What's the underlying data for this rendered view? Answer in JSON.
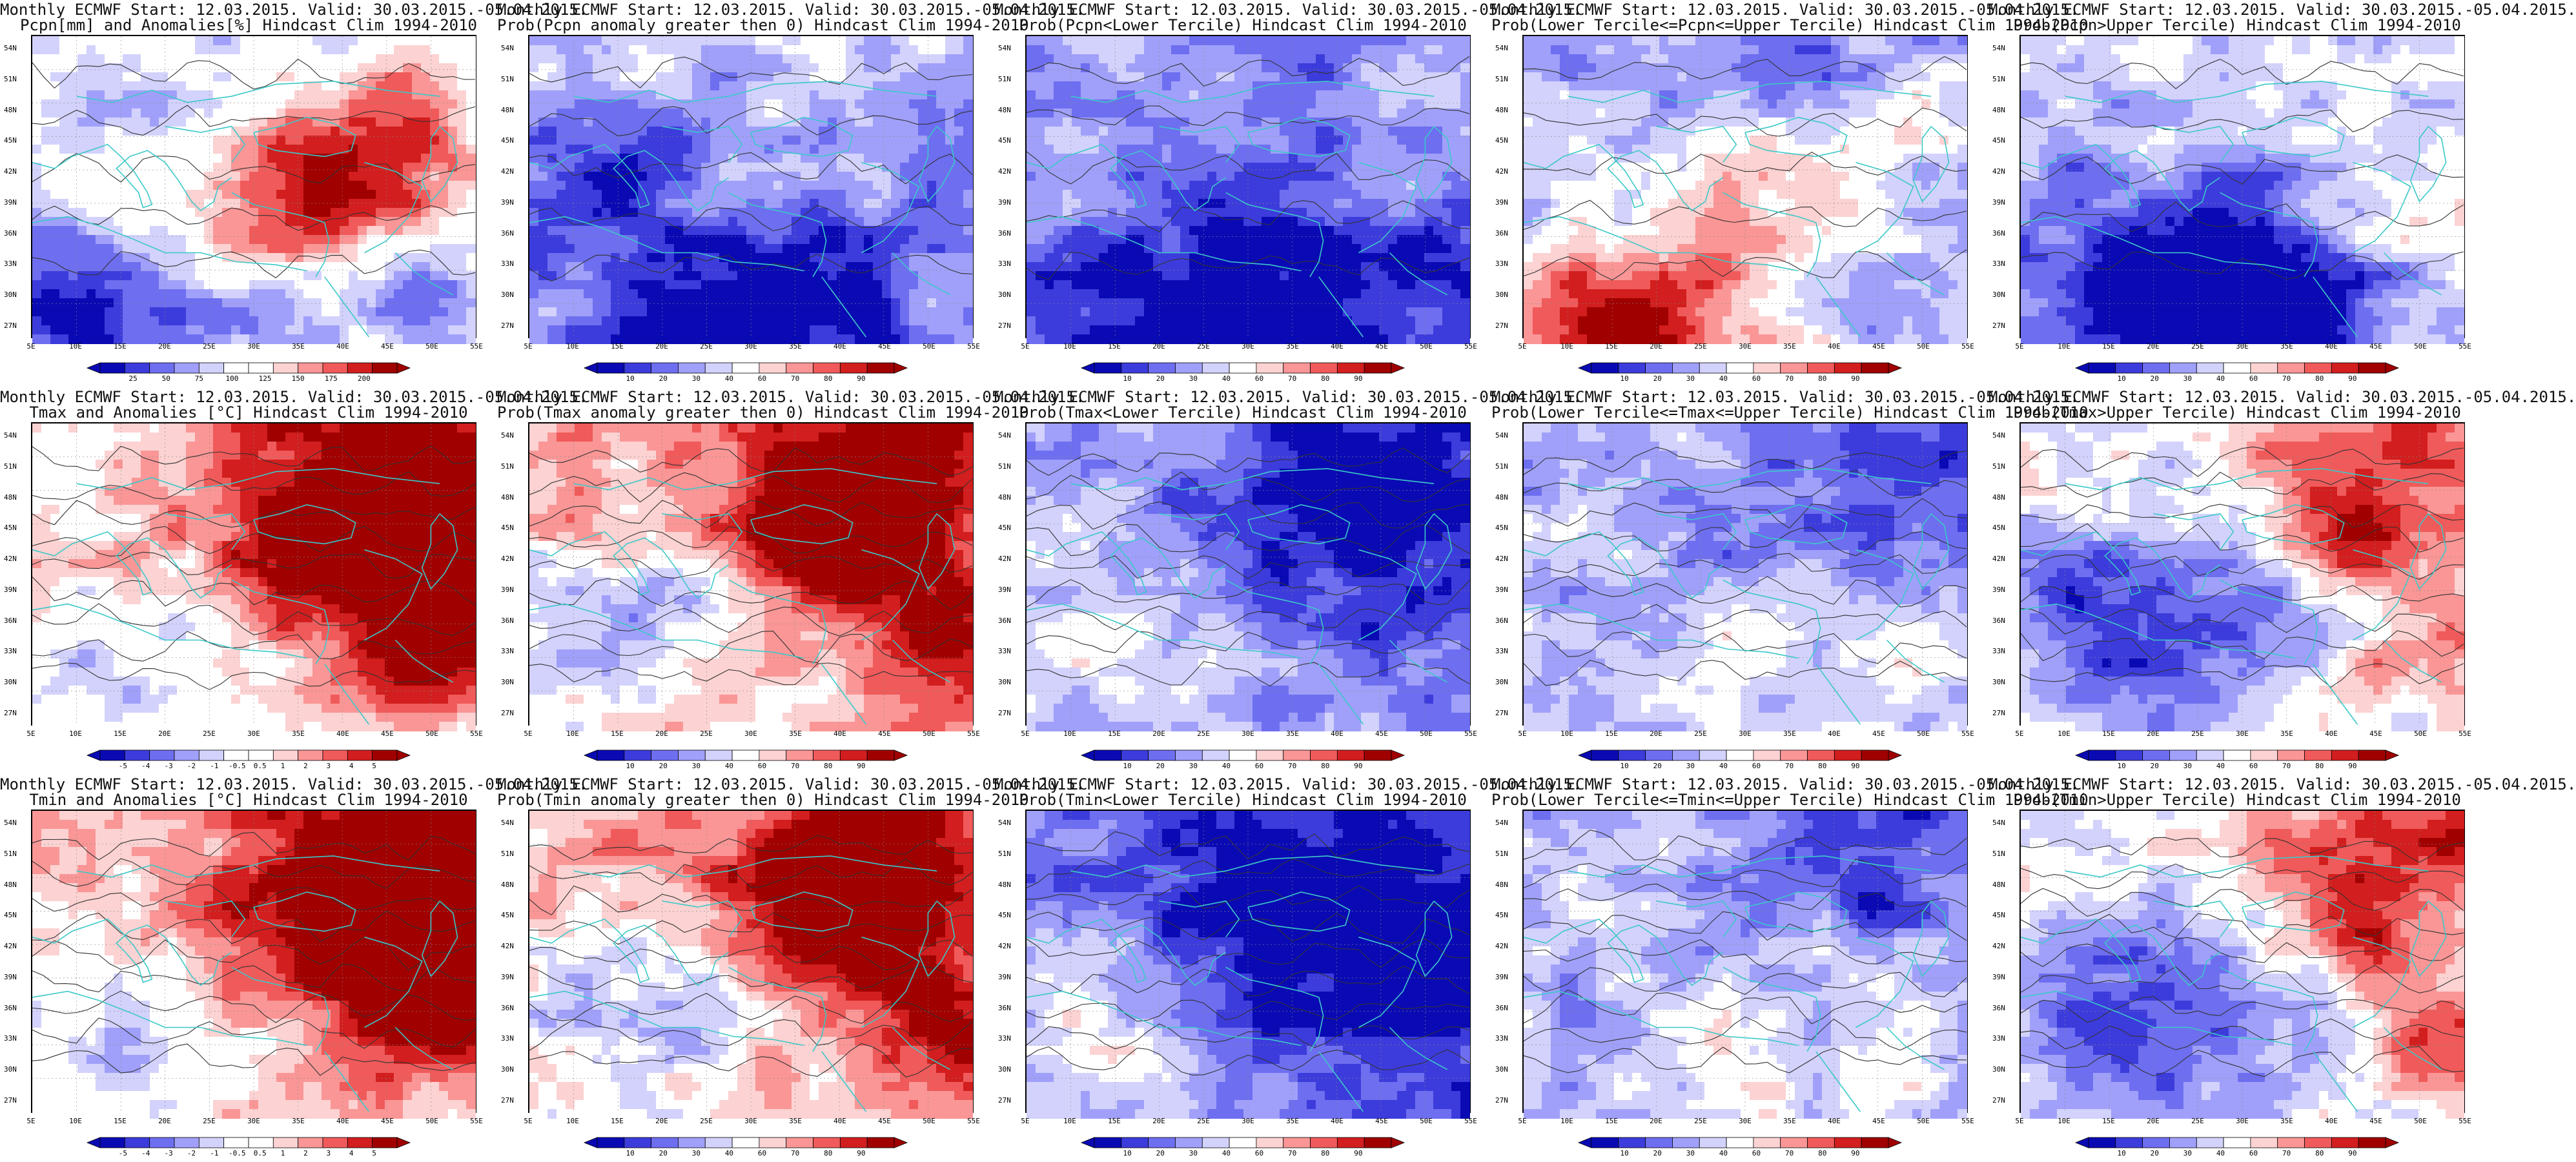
{
  "common": {
    "lat_ticks": [
      "54N",
      "51N",
      "48N",
      "45N",
      "42N",
      "39N",
      "36N",
      "33N",
      "30N",
      "27N"
    ],
    "lon_ticks": [
      "5E",
      "10E",
      "15E",
      "20E",
      "25E",
      "30E",
      "35E",
      "40E",
      "45E",
      "50E",
      "55E"
    ],
    "palettes": {
      "anomaly": [
        "#0a0ab4",
        "#3c3cdc",
        "#6e6ef0",
        "#a0a0fa",
        "#d2d2fc",
        "#ffffff",
        "#ffffff",
        "#fcd2d2",
        "#fa9696",
        "#f05a5a",
        "#d21e1e",
        "#a00000"
      ],
      "probability": [
        "#0a0ab4",
        "#3c3cdc",
        "#6e6ef0",
        "#a0a0fa",
        "#d2d2fc",
        "#ffffff",
        "#fcd2d2",
        "#fa9696",
        "#f05a5a",
        "#d21e1e",
        "#a00000"
      ]
    },
    "coast_color": "#3cc8c8",
    "contour_color": "#333333"
  },
  "panels": [
    {
      "row": 0,
      "col": 0,
      "title1": "Monthly ECMWF Start: 12.03.2015. Valid: 30.03.2015.-05.04.2015.",
      "title2": "Pcpn[mm] and Anomalies[%] Hindcast Clim 1994-2010",
      "palette": "anomaly",
      "cb_labels": [
        "25",
        "50",
        "75",
        "100",
        "125",
        "150",
        "175",
        "200"
      ],
      "pattern": "pcpn_anom"
    },
    {
      "row": 0,
      "col": 1,
      "title1": "Monthly ECMWF Start: 12.03.2015. Valid: 30.03.2015.-05.04.2015.",
      "title2": "Prob(Pcpn anomaly greater then 0) Hindcast Clim 1994-2010",
      "palette": "probability",
      "cb_labels": [
        "10",
        "20",
        "30",
        "40",
        "60",
        "70",
        "80",
        "90"
      ],
      "pattern": "pcpn_prob"
    },
    {
      "row": 0,
      "col": 2,
      "title1": "Monthly ECMWF Start: 12.03.2015. Valid: 30.03.2015.-05.04.2015.",
      "title2": "Prob(Pcpn<Lower Tercile) Hindcast Clim 1994-2010",
      "palette": "probability",
      "cb_labels": [
        "10",
        "20",
        "30",
        "40",
        "60",
        "70",
        "80",
        "90"
      ],
      "pattern": "pcpn_lower"
    },
    {
      "row": 0,
      "col": 3,
      "title1": "Monthly ECMWF Start: 12.03.2015. Valid: 30.03.2015.-05.04.2015.",
      "title2": "Prob(Lower Tercile<=Pcpn<=Upper Tercile) Hindcast Clim 1994-2010",
      "palette": "probability",
      "cb_labels": [
        "10",
        "20",
        "30",
        "40",
        "60",
        "70",
        "80",
        "90"
      ],
      "pattern": "pcpn_middle"
    },
    {
      "row": 0,
      "col": 4,
      "title1": "Monthly ECMWF Start: 12.03.2015. Valid: 30.03.2015.-05.04.2015.",
      "title2": "Prob(Pcpn>Upper Tercile) Hindcast Clim 1994-2010",
      "palette": "probability",
      "cb_labels": [
        "10",
        "20",
        "30",
        "40",
        "60",
        "70",
        "80",
        "90"
      ],
      "pattern": "pcpn_upper"
    },
    {
      "row": 1,
      "col": 0,
      "title1": "Monthly ECMWF Start: 12.03.2015. Valid: 30.03.2015.-05.04.2015.",
      "title2": "Tmax and Anomalies [°C] Hindcast Clim 1994-2010",
      "palette": "anomaly",
      "cb_labels": [
        "-5",
        "-4",
        "-3",
        "-2",
        "-1",
        "-0.5",
        "0.5",
        "1",
        "2",
        "3",
        "4",
        "5"
      ],
      "pattern": "t_anom"
    },
    {
      "row": 1,
      "col": 1,
      "title1": "Monthly ECMWF Start: 12.03.2015. Valid: 30.03.2015.-05.04.2015.",
      "title2": "Prob(Tmax anomaly greater then 0) Hindcast Clim 1994-2010",
      "palette": "probability",
      "cb_labels": [
        "10",
        "20",
        "30",
        "40",
        "60",
        "70",
        "80",
        "90"
      ],
      "pattern": "t_prob"
    },
    {
      "row": 1,
      "col": 2,
      "title1": "Monthly ECMWF Start: 12.03.2015. Valid: 30.03.2015.-05.04.2015.",
      "title2": "Prob(Tmax<Lower Tercile) Hindcast Clim 1994-2010",
      "palette": "probability",
      "cb_labels": [
        "10",
        "20",
        "30",
        "40",
        "60",
        "70",
        "80",
        "90"
      ],
      "pattern": "t_lower"
    },
    {
      "row": 1,
      "col": 3,
      "title1": "Monthly ECMWF Start: 12.03.2015. Valid: 30.03.2015.-05.04.2015.",
      "title2": "Prob(Lower Tercile<=Tmax<=Upper Tercile) Hindcast Clim 1994-2010",
      "palette": "probability",
      "cb_labels": [
        "10",
        "20",
        "30",
        "40",
        "60",
        "70",
        "80",
        "90"
      ],
      "pattern": "t_middle"
    },
    {
      "row": 1,
      "col": 4,
      "title1": "Monthly ECMWF Start: 12.03.2015. Valid: 30.03.2015.-05.04.2015.",
      "title2": "Prob(Tmax>Upper Tercile) Hindcast Clim 1994-2010",
      "palette": "probability",
      "cb_labels": [
        "10",
        "20",
        "30",
        "40",
        "60",
        "70",
        "80",
        "90"
      ],
      "pattern": "t_upper"
    },
    {
      "row": 2,
      "col": 0,
      "title1": "Monthly ECMWF Start: 12.03.2015. Valid: 30.03.2015.-05.04.2015.",
      "title2": "Tmin and Anomalies [°C] Hindcast Clim 1994-2010",
      "palette": "anomaly",
      "cb_labels": [
        "-5",
        "-4",
        "-3",
        "-2",
        "-1",
        "-0.5",
        "0.5",
        "1",
        "2",
        "3",
        "4",
        "5"
      ],
      "pattern": "t_anom"
    },
    {
      "row": 2,
      "col": 1,
      "title1": "Monthly ECMWF Start: 12.03.2015. Valid: 30.03.2015.-05.04.2015.",
      "title2": "Prob(Tmin anomaly greater then 0) Hindcast Clim 1994-2010",
      "palette": "probability",
      "cb_labels": [
        "10",
        "20",
        "30",
        "40",
        "60",
        "70",
        "80",
        "90"
      ],
      "pattern": "t_prob"
    },
    {
      "row": 2,
      "col": 2,
      "title1": "Monthly ECMWF Start: 12.03.2015. Valid: 30.03.2015.-05.04.2015.",
      "title2": "Prob(Tmin<Lower Tercile) Hindcast Clim 1994-2010",
      "palette": "probability",
      "cb_labels": [
        "10",
        "20",
        "30",
        "40",
        "60",
        "70",
        "80",
        "90"
      ],
      "pattern": "tmin_lower"
    },
    {
      "row": 2,
      "col": 3,
      "title1": "Monthly ECMWF Start: 12.03.2015. Valid: 30.03.2015.-05.04.2015.",
      "title2": "Prob(Lower Tercile<=Tmin<=Upper Tercile) Hindcast Clim 1994-2010",
      "palette": "probability",
      "cb_labels": [
        "10",
        "20",
        "30",
        "40",
        "60",
        "70",
        "80",
        "90"
      ],
      "pattern": "t_middle"
    },
    {
      "row": 2,
      "col": 4,
      "title1": "Monthly ECMWF Start: 12.03.2015. Valid: 30.03.2015.-05.04.2015.",
      "title2": "Prob(Tmin>Upper Tercile) Hindcast Clim 1994-2010",
      "palette": "probability",
      "cb_labels": [
        "10",
        "20",
        "30",
        "40",
        "60",
        "70",
        "80",
        "90"
      ],
      "pattern": "t_upper"
    }
  ]
}
